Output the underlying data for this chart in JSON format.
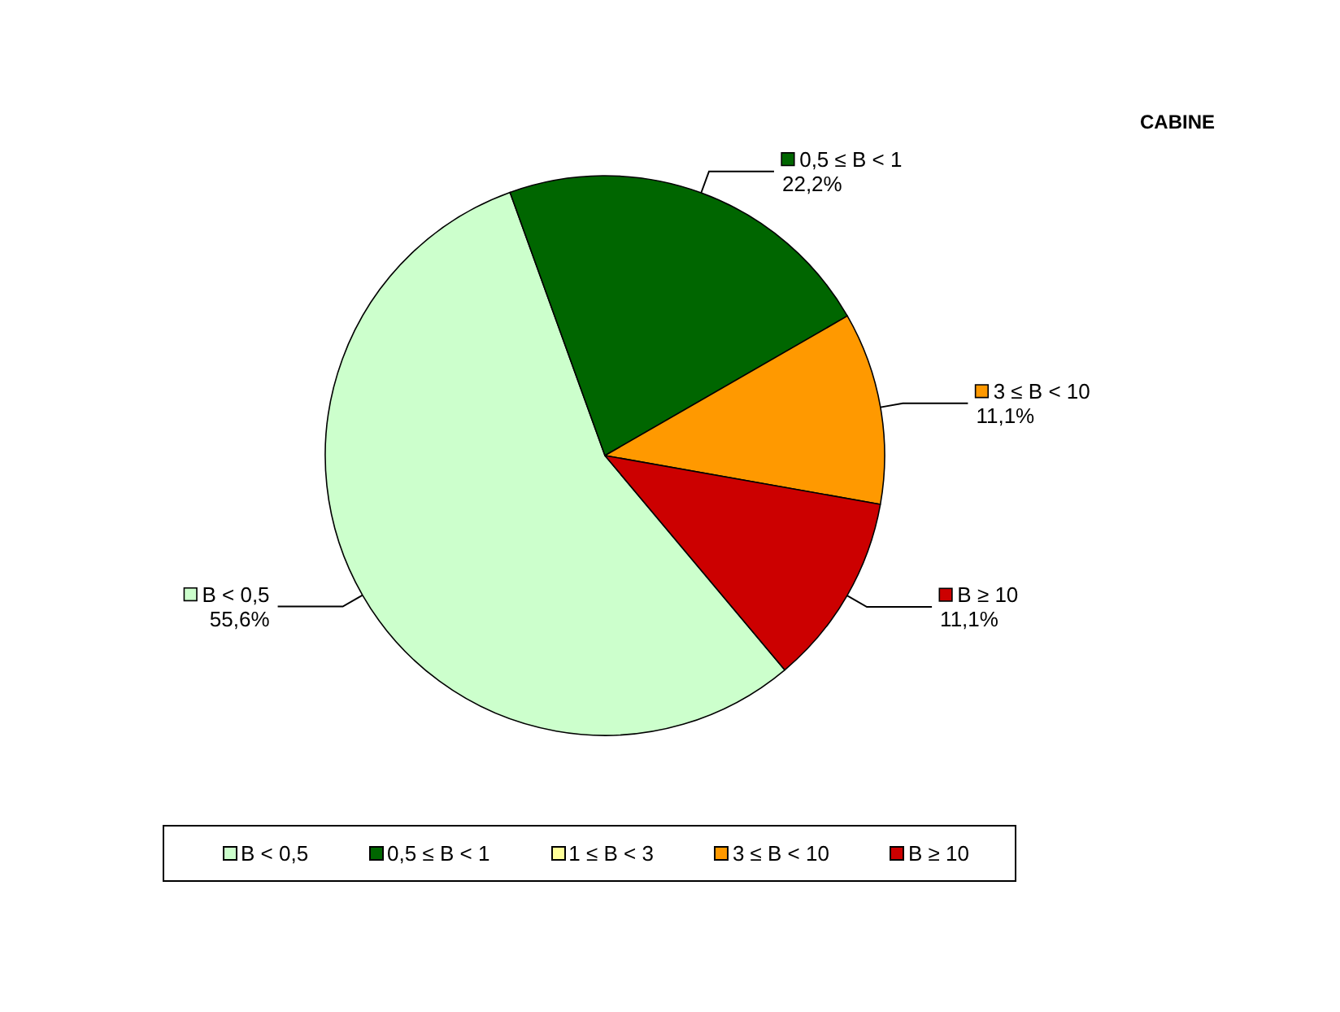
{
  "chart_data": {
    "type": "pie",
    "title": "CABINE",
    "categories": [
      "B < 0,5",
      "0,5 ≤ B < 1",
      "1 ≤ B < 3",
      "3 ≤ B < 10",
      "B ≥ 10"
    ],
    "values": [
      55.6,
      22.2,
      0,
      11.1,
      11.1
    ],
    "colors": [
      "#ccffcc",
      "#006600",
      "#ffff99",
      "#ff9900",
      "#cc0000"
    ],
    "value_labels": [
      "55,6%",
      "22,2%",
      null,
      "11,1%",
      "11,1%"
    ],
    "legend": "bottom"
  }
}
